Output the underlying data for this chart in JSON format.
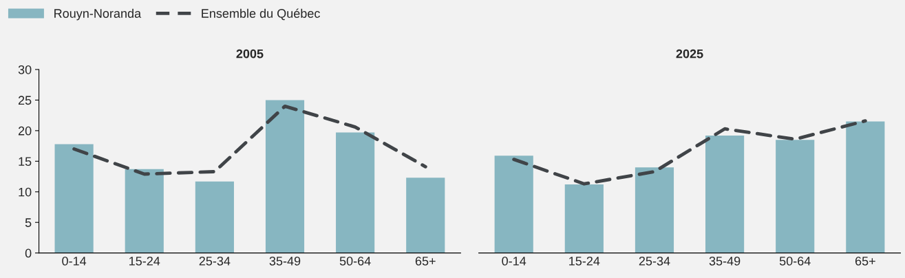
{
  "chart_data": [
    {
      "type": "bar",
      "title": "2005",
      "categories": [
        "0-14",
        "15-24",
        "25-34",
        "35-49",
        "50-64",
        "65+"
      ],
      "ylim": [
        0,
        30
      ],
      "yticks": [
        0,
        5,
        10,
        15,
        20,
        25,
        30
      ],
      "legend": "top left",
      "grid": false,
      "series": [
        {
          "name": "Rouyn-Noranda",
          "color": "#87b6c1",
          "values": [
            17.8,
            13.7,
            11.7,
            25.0,
            19.7,
            12.3
          ]
        },
        {
          "name": "Ensemble du Québec",
          "type": "line",
          "color": "#404448",
          "line_style": "dashed",
          "values": [
            17.0,
            12.9,
            13.3,
            24.0,
            20.6,
            14.1
          ]
        }
      ]
    },
    {
      "type": "bar",
      "title": "2025",
      "categories": [
        "0-14",
        "15-24",
        "25-34",
        "35-49",
        "50-64",
        "65+"
      ],
      "ylim": [
        0,
        30
      ],
      "tick_labels": "x",
      "grid": false,
      "series": [
        {
          "color": "#87b6c1",
          "values": [
            15.9,
            11.2,
            14.0,
            19.2,
            18.5,
            21.5
          ]
        },
        {
          "type": "line",
          "color": "#404448",
          "line_style": "dashed",
          "values": [
            15.3,
            11.3,
            13.3,
            20.3,
            18.6,
            21.6
          ]
        }
      ]
    }
  ]
}
